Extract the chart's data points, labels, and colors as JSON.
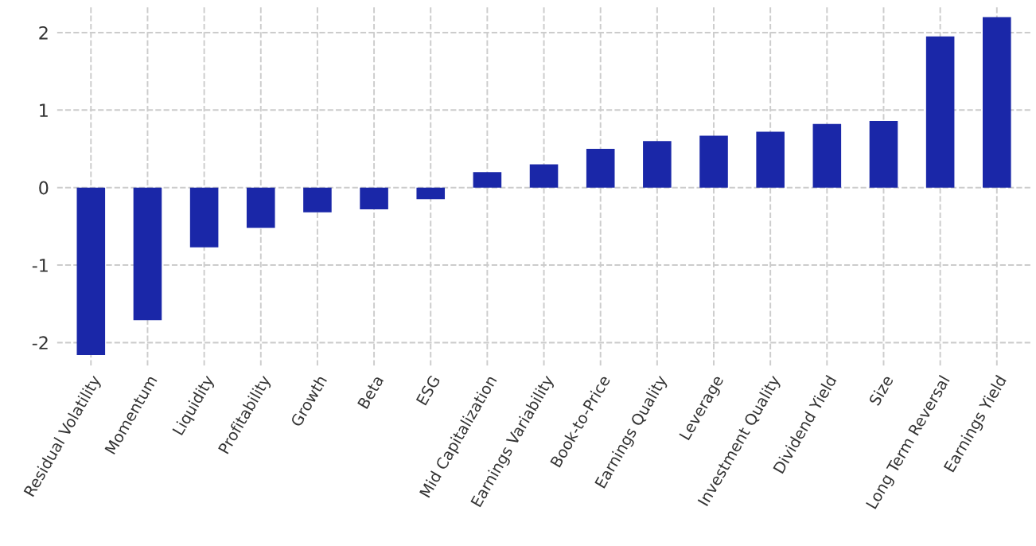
{
  "chart_data": {
    "type": "bar",
    "categories": [
      "Residual Volatility",
      "Momentum",
      "Liquidity",
      "Profitability",
      "Growth",
      "Beta",
      "ESG",
      "Mid Capitalization",
      "Earnings Variability",
      "Book-to-Price",
      "Earnings Quality",
      "Leverage",
      "Investment Quality",
      "Dividend Yield",
      "Size",
      "Long Term Reversal",
      "Earnings Yield"
    ],
    "values": [
      -2.16,
      -1.71,
      -0.77,
      -0.52,
      -0.32,
      -0.28,
      -0.15,
      0.2,
      0.3,
      0.5,
      0.6,
      0.67,
      0.72,
      0.82,
      0.86,
      1.95,
      2.2
    ],
    "color": "#1a27a8",
    "ylim": [
      -2.3,
      2.35
    ],
    "yticks": [
      -2,
      -1,
      0,
      1,
      2
    ],
    "grid": true
  }
}
